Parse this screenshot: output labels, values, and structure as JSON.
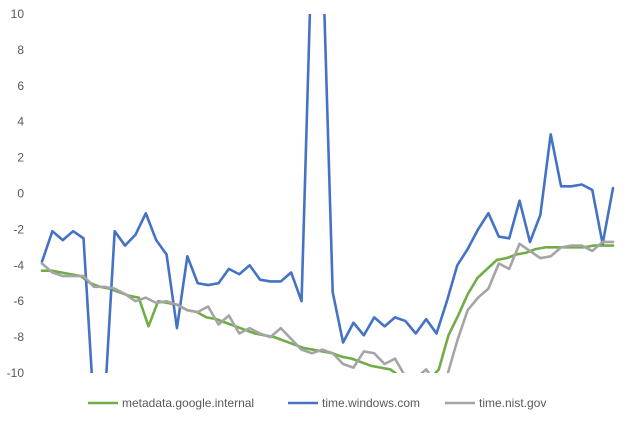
{
  "chart_data": {
    "type": "line",
    "title": "",
    "xlabel": "",
    "ylabel": "",
    "ylim": [
      -10,
      10
    ],
    "yticks": [
      -10,
      -8,
      -6,
      -4,
      -2,
      0,
      2,
      4,
      6,
      8,
      10
    ],
    "grid": false,
    "legend_position": "bottom",
    "series": [
      {
        "name": "metadata.google.internal",
        "color": "#70AD47",
        "values": [
          -4.3,
          -4.3,
          -4.4,
          -4.5,
          -4.6,
          -5.0,
          -5.2,
          -5.3,
          -5.5,
          -5.7,
          -5.8,
          -7.4,
          -6.0,
          -6.1,
          -6.2,
          -6.5,
          -6.6,
          -6.9,
          -7.0,
          -7.2,
          -7.4,
          -7.6,
          -7.8,
          -7.9,
          -8.0,
          -8.2,
          -8.4,
          -8.6,
          -8.7,
          -8.8,
          -8.9,
          -9.1,
          -9.2,
          -9.4,
          -9.6,
          -9.7,
          -9.8,
          -10.2,
          -10.5,
          -10.6,
          -10.4,
          -9.8,
          -7.9,
          -6.8,
          -5.6,
          -4.7,
          -4.2,
          -3.7,
          -3.6,
          -3.4,
          -3.3,
          -3.1,
          -3.0,
          -3.0,
          -3.0,
          -3.0,
          -3.0,
          -2.9,
          -2.9,
          -2.9
        ]
      },
      {
        "name": "time.windows.com",
        "color": "#4472C4",
        "values": [
          -3.8,
          -2.1,
          -2.6,
          -2.1,
          -2.5,
          -12.0,
          -12.0,
          -2.1,
          -2.9,
          -2.3,
          -1.1,
          -2.6,
          -3.4,
          -7.5,
          -3.5,
          -5.0,
          -5.1,
          -5.0,
          -4.2,
          -4.5,
          -4.0,
          -4.8,
          -4.9,
          -4.9,
          -4.4,
          -6.0,
          14.0,
          14.0,
          -5.5,
          -8.3,
          -7.2,
          -7.9,
          -6.9,
          -7.4,
          -6.9,
          -7.1,
          -7.8,
          -7.0,
          -7.8,
          -6.0,
          -4.0,
          -3.1,
          -2.0,
          -1.1,
          -2.4,
          -2.5,
          -0.4,
          -2.7,
          -1.2,
          3.3,
          0.4,
          0.4,
          0.5,
          0.2,
          -2.8,
          0.3
        ]
      },
      {
        "name": "time.nist.gov",
        "color": "#A5A5A5",
        "values": [
          -3.9,
          -4.4,
          -4.6,
          -4.6,
          -4.6,
          -5.2,
          -5.2,
          -5.3,
          -5.6,
          -6.0,
          -5.8,
          -6.1,
          -6.0,
          -6.2,
          -6.5,
          -6.6,
          -6.3,
          -7.3,
          -6.8,
          -7.8,
          -7.5,
          -7.8,
          -8.0,
          -7.5,
          -8.1,
          -8.7,
          -8.9,
          -8.7,
          -8.9,
          -9.5,
          -9.7,
          -8.8,
          -8.9,
          -9.5,
          -9.2,
          -10.2,
          -10.3,
          -9.8,
          -10.6,
          -10.2,
          -8.2,
          -6.5,
          -5.8,
          -5.3,
          -3.9,
          -4.2,
          -2.8,
          -3.2,
          -3.6,
          -3.5,
          -3.0,
          -2.9,
          -2.9,
          -3.2,
          -2.7,
          -2.7
        ]
      }
    ]
  }
}
